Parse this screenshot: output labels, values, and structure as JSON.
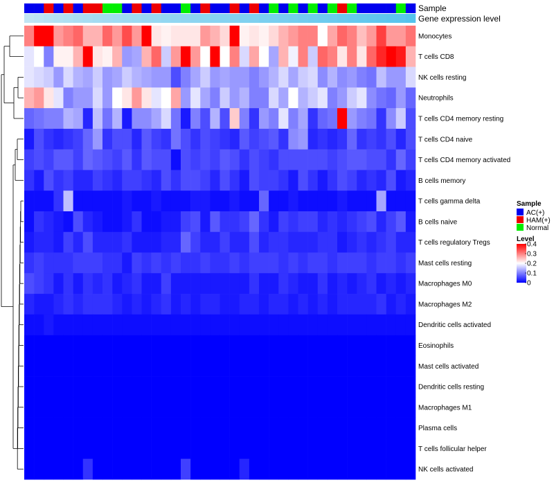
{
  "chart_data": {
    "type": "heatmap",
    "title": "",
    "annotation_labels": [
      "Sample",
      "Gene expression level"
    ],
    "rows": [
      "Monocytes",
      "T cells CD8",
      "NK cells resting",
      "Neutrophils",
      "T cells CD4 memory resting",
      "T cells CD4 naive",
      "T cells CD4 memory activated",
      "B cells memory",
      "T cells gamma delta",
      "B cells naive",
      "T cells regulatory  Tregs",
      "Mast cells resting",
      "Macrophages M0",
      "Macrophages M2",
      "Dendritic cells activated",
      "Eosinophils",
      "Mast cells activated",
      "Dendritic cells resting",
      "Macrophages M1",
      "Plasma cells",
      "T cells follicular helper",
      "NK cells activated"
    ],
    "sample_groups": [
      "A",
      "A",
      "H",
      "A",
      "H",
      "A",
      "H",
      "H",
      "N",
      "N",
      "A",
      "H",
      "A",
      "H",
      "A",
      "A",
      "N",
      "A",
      "H",
      "A",
      "A",
      "H",
      "A",
      "H",
      "A",
      "N",
      "A",
      "N",
      "A",
      "N",
      "A",
      "N",
      "H",
      "N",
      "A",
      "A",
      "A",
      "A",
      "N",
      "A"
    ],
    "expression_annotation": [
      0.1,
      0.14,
      0.18,
      0.22,
      0.25,
      0.28,
      0.31,
      0.34,
      0.36,
      0.38,
      0.4,
      0.42,
      0.44,
      0.46,
      0.48,
      0.5,
      0.52,
      0.54,
      0.56,
      0.58,
      0.6,
      0.62,
      0.64,
      0.66,
      0.68,
      0.7,
      0.72,
      0.74,
      0.76,
      0.78,
      0.8,
      0.82,
      0.84,
      0.86,
      0.88,
      0.9,
      0.92,
      0.94,
      0.96,
      1.0
    ],
    "values": [
      [
        0.3,
        0.4,
        0.4,
        0.28,
        0.3,
        0.32,
        0.26,
        0.26,
        0.32,
        0.28,
        0.34,
        0.28,
        0.4,
        0.22,
        0.21,
        0.22,
        0.22,
        0.22,
        0.28,
        0.26,
        0.23,
        0.4,
        0.21,
        0.22,
        0.21,
        0.23,
        0.26,
        0.28,
        0.3,
        0.3,
        0.2,
        0.27,
        0.32,
        0.3,
        0.25,
        0.28,
        0.35,
        0.28,
        0.28,
        0.31
      ],
      [
        0.18,
        0.2,
        0.1,
        0.21,
        0.21,
        0.26,
        0.4,
        0.22,
        0.21,
        0.26,
        0.12,
        0.13,
        0.26,
        0.32,
        0.16,
        0.28,
        0.4,
        0.28,
        0.2,
        0.42,
        0.2,
        0.3,
        0.17,
        0.27,
        0.2,
        0.13,
        0.26,
        0.19,
        0.3,
        0.16,
        0.32,
        0.3,
        0.22,
        0.3,
        0.22,
        0.32,
        0.37,
        0.42,
        0.38,
        0.26
      ],
      [
        0.18,
        0.17,
        0.16,
        0.12,
        0.17,
        0.14,
        0.13,
        0.16,
        0.12,
        0.13,
        0.16,
        0.14,
        0.13,
        0.12,
        0.12,
        0.06,
        0.1,
        0.13,
        0.16,
        0.12,
        0.13,
        0.12,
        0.12,
        0.1,
        0.12,
        0.14,
        0.17,
        0.13,
        0.16,
        0.17,
        0.11,
        0.14,
        0.11,
        0.12,
        0.1,
        0.09,
        0.15,
        0.12,
        0.12,
        0.17
      ],
      [
        0.26,
        0.28,
        0.22,
        0.18,
        0.1,
        0.12,
        0.12,
        0.17,
        0.12,
        0.2,
        0.22,
        0.28,
        0.22,
        0.18,
        0.2,
        0.27,
        0.12,
        0.18,
        0.13,
        0.1,
        0.16,
        0.12,
        0.14,
        0.1,
        0.1,
        0.17,
        0.13,
        0.2,
        0.14,
        0.16,
        0.18,
        0.1,
        0.12,
        0.16,
        0.18,
        0.11,
        0.09,
        0.08,
        0.12,
        0.08
      ],
      [
        0.08,
        0.09,
        0.1,
        0.1,
        0.14,
        0.13,
        0.03,
        0.15,
        0.09,
        0.14,
        0.02,
        0.11,
        0.11,
        0.13,
        0.17,
        0.09,
        0.02,
        0.1,
        0.06,
        0.14,
        0.06,
        0.24,
        0.1,
        0.04,
        0.12,
        0.1,
        0.18,
        0.1,
        0.13,
        0.04,
        0.08,
        0.09,
        0.42,
        0.12,
        0.1,
        0.09,
        0.04,
        0.11,
        0.16,
        0.06
      ],
      [
        0.02,
        0.06,
        0.04,
        0.03,
        0.04,
        0.05,
        0.08,
        0.12,
        0.04,
        0.06,
        0.06,
        0.03,
        0.07,
        0.05,
        0.04,
        0.09,
        0.06,
        0.04,
        0.06,
        0.05,
        0.04,
        0.03,
        0.07,
        0.05,
        0.06,
        0.07,
        0.04,
        0.11,
        0.12,
        0.03,
        0.04,
        0.03,
        0.04,
        0.08,
        0.04,
        0.05,
        0.04,
        0.06,
        0.03,
        0.06
      ],
      [
        0.05,
        0.06,
        0.05,
        0.07,
        0.07,
        0.05,
        0.08,
        0.07,
        0.06,
        0.05,
        0.07,
        0.04,
        0.07,
        0.06,
        0.06,
        0.01,
        0.06,
        0.05,
        0.06,
        0.05,
        0.07,
        0.06,
        0.04,
        0.06,
        0.05,
        0.04,
        0.06,
        0.06,
        0.06,
        0.06,
        0.06,
        0.05,
        0.06,
        0.07,
        0.07,
        0.06,
        0.06,
        0.04,
        0.08,
        0.05
      ],
      [
        0.04,
        0.02,
        0.06,
        0.04,
        0.05,
        0.03,
        0.03,
        0.05,
        0.04,
        0.03,
        0.05,
        0.05,
        0.04,
        0.03,
        0.06,
        0.04,
        0.06,
        0.06,
        0.05,
        0.03,
        0.06,
        0.04,
        0.02,
        0.06,
        0.05,
        0.05,
        0.04,
        0.02,
        0.06,
        0.04,
        0.02,
        0.04,
        0.06,
        0.05,
        0.03,
        0.04,
        0.03,
        0.06,
        0.02,
        0.03
      ],
      [
        0.01,
        0.01,
        0.01,
        0.04,
        0.15,
        0.01,
        0.01,
        0.01,
        0.01,
        0.01,
        0.02,
        0.01,
        0.01,
        0.02,
        0.01,
        0.01,
        0.01,
        0.02,
        0.02,
        0.01,
        0.01,
        0.02,
        0.01,
        0.01,
        0.08,
        0.01,
        0.01,
        0.02,
        0.01,
        0.01,
        0.01,
        0.01,
        0.02,
        0.01,
        0.01,
        0.01,
        0.13,
        0.01,
        0.01,
        0.01
      ],
      [
        0.01,
        0.04,
        0.03,
        0.02,
        0.01,
        0.06,
        0.03,
        0.02,
        0.01,
        0.01,
        0.02,
        0.04,
        0.01,
        0.01,
        0.02,
        0.02,
        0.05,
        0.06,
        0.02,
        0.07,
        0.04,
        0.04,
        0.05,
        0.08,
        0.04,
        0.02,
        0.05,
        0.04,
        0.05,
        0.05,
        0.03,
        0.04,
        0.03,
        0.04,
        0.05,
        0.06,
        0.03,
        0.05,
        0.07,
        0.02
      ],
      [
        0.02,
        0.03,
        0.03,
        0.02,
        0.05,
        0.03,
        0.06,
        0.03,
        0.03,
        0.03,
        0.04,
        0.02,
        0.02,
        0.02,
        0.03,
        0.03,
        0.08,
        0.05,
        0.03,
        0.03,
        0.05,
        0.03,
        0.03,
        0.06,
        0.03,
        0.04,
        0.04,
        0.03,
        0.03,
        0.03,
        0.04,
        0.04,
        0.02,
        0.03,
        0.04,
        0.03,
        0.04,
        0.05,
        0.03,
        0.03
      ],
      [
        0.04,
        0.05,
        0.04,
        0.04,
        0.04,
        0.05,
        0.05,
        0.05,
        0.04,
        0.04,
        0.02,
        0.05,
        0.04,
        0.05,
        0.04,
        0.05,
        0.04,
        0.04,
        0.05,
        0.04,
        0.04,
        0.05,
        0.04,
        0.05,
        0.05,
        0.05,
        0.04,
        0.05,
        0.04,
        0.05,
        0.05,
        0.04,
        0.05,
        0.05,
        0.05,
        0.04,
        0.05,
        0.05,
        0.04,
        0.05
      ],
      [
        0.06,
        0.05,
        0.04,
        0.02,
        0.04,
        0.02,
        0.04,
        0.03,
        0.04,
        0.02,
        0.03,
        0.04,
        0.02,
        0.02,
        0.05,
        0.02,
        0.02,
        0.02,
        0.02,
        0.02,
        0.02,
        0.02,
        0.02,
        0.04,
        0.02,
        0.02,
        0.04,
        0.03,
        0.02,
        0.02,
        0.04,
        0.02,
        0.03,
        0.02,
        0.03,
        0.04,
        0.02,
        0.03,
        0.02,
        0.03
      ],
      [
        0.03,
        0.02,
        0.02,
        0.03,
        0.04,
        0.03,
        0.04,
        0.04,
        0.04,
        0.03,
        0.02,
        0.03,
        0.02,
        0.03,
        0.04,
        0.02,
        0.03,
        0.02,
        0.03,
        0.03,
        0.02,
        0.02,
        0.03,
        0.03,
        0.02,
        0.03,
        0.03,
        0.02,
        0.03,
        0.02,
        0.03,
        0.02,
        0.03,
        0.03,
        0.03,
        0.03,
        0.04,
        0.02,
        0.03,
        0.02
      ],
      [
        0.01,
        0.01,
        0.02,
        0.01,
        0.01,
        0.01,
        0.01,
        0.01,
        0.01,
        0.01,
        0.01,
        0.01,
        0.01,
        0.01,
        0.01,
        0.01,
        0.01,
        0.01,
        0.01,
        0.01,
        0.01,
        0.01,
        0.01,
        0.01,
        0.01,
        0.01,
        0.01,
        0.01,
        0.01,
        0.01,
        0.01,
        0.01,
        0.01,
        0.01,
        0.01,
        0.01,
        0.01,
        0.01,
        0.01,
        0.01
      ],
      [
        0.0,
        0.0,
        0.0,
        0.0,
        0.0,
        0.0,
        0.0,
        0.0,
        0.0,
        0.0,
        0.0,
        0.0,
        0.0,
        0.0,
        0.0,
        0.0,
        0.0,
        0.0,
        0.0,
        0.0,
        0.0,
        0.0,
        0.0,
        0.0,
        0.0,
        0.0,
        0.0,
        0.0,
        0.0,
        0.0,
        0.0,
        0.0,
        0.0,
        0.0,
        0.0,
        0.0,
        0.0,
        0.0,
        0.0,
        0.0
      ],
      [
        0.0,
        0.0,
        0.0,
        0.0,
        0.0,
        0.0,
        0.0,
        0.0,
        0.0,
        0.0,
        0.0,
        0.0,
        0.0,
        0.0,
        0.0,
        0.0,
        0.0,
        0.0,
        0.0,
        0.0,
        0.0,
        0.0,
        0.0,
        0.0,
        0.0,
        0.0,
        0.0,
        0.0,
        0.0,
        0.0,
        0.0,
        0.0,
        0.0,
        0.0,
        0.0,
        0.0,
        0.0,
        0.0,
        0.0,
        0.0
      ],
      [
        0.0,
        0.0,
        0.0,
        0.0,
        0.0,
        0.0,
        0.0,
        0.0,
        0.0,
        0.0,
        0.0,
        0.0,
        0.0,
        0.0,
        0.0,
        0.0,
        0.0,
        0.0,
        0.0,
        0.0,
        0.0,
        0.0,
        0.0,
        0.0,
        0.0,
        0.0,
        0.0,
        0.0,
        0.0,
        0.0,
        0.0,
        0.0,
        0.0,
        0.0,
        0.0,
        0.0,
        0.0,
        0.0,
        0.0,
        0.0
      ],
      [
        0.0,
        0.0,
        0.0,
        0.0,
        0.0,
        0.0,
        0.0,
        0.0,
        0.0,
        0.0,
        0.0,
        0.0,
        0.0,
        0.0,
        0.0,
        0.0,
        0.0,
        0.0,
        0.0,
        0.0,
        0.0,
        0.0,
        0.0,
        0.0,
        0.0,
        0.0,
        0.0,
        0.0,
        0.0,
        0.0,
        0.0,
        0.0,
        0.0,
        0.0,
        0.0,
        0.0,
        0.0,
        0.0,
        0.0,
        0.0
      ],
      [
        0.0,
        0.0,
        0.0,
        0.0,
        0.0,
        0.0,
        0.0,
        0.0,
        0.0,
        0.0,
        0.0,
        0.0,
        0.0,
        0.0,
        0.0,
        0.0,
        0.0,
        0.0,
        0.0,
        0.0,
        0.0,
        0.0,
        0.0,
        0.0,
        0.0,
        0.0,
        0.0,
        0.0,
        0.0,
        0.0,
        0.0,
        0.0,
        0.0,
        0.0,
        0.0,
        0.0,
        0.0,
        0.0,
        0.0,
        0.0
      ],
      [
        0.0,
        0.0,
        0.0,
        0.0,
        0.0,
        0.0,
        0.0,
        0.0,
        0.0,
        0.0,
        0.0,
        0.0,
        0.0,
        0.0,
        0.0,
        0.0,
        0.0,
        0.0,
        0.0,
        0.0,
        0.0,
        0.0,
        0.0,
        0.0,
        0.0,
        0.0,
        0.0,
        0.0,
        0.0,
        0.0,
        0.0,
        0.0,
        0.0,
        0.0,
        0.0,
        0.0,
        0.0,
        0.0,
        0.0,
        0.0
      ],
      [
        0.0,
        0.0,
        0.0,
        0.0,
        0.0,
        0.0,
        0.04,
        0.0,
        0.0,
        0.0,
        0.0,
        0.0,
        0.0,
        0.0,
        0.0,
        0.0,
        0.05,
        0.0,
        0.0,
        0.0,
        0.0,
        0.0,
        0.03,
        0.0,
        0.0,
        0.0,
        0.0,
        0.0,
        0.0,
        0.0,
        0.0,
        0.0,
        0.0,
        0.0,
        0.0,
        0.0,
        0.0,
        0.0,
        0.0,
        0.0
      ]
    ],
    "color_scale": {
      "min": 0,
      "max": 0.4,
      "low": "#0000ff",
      "mid": "#ffffff",
      "high": "#ff0000",
      "midpoint": 0.2
    },
    "annotation_scale": {
      "low": "#cde9f5",
      "high": "#55c3ec"
    },
    "legend": {
      "position": "right",
      "sample_title": "Sample",
      "sample_items": [
        {
          "key": "A",
          "label": "AC(+)",
          "color": "#0000ee"
        },
        {
          "key": "H",
          "label": "HAM(+)",
          "color": "#ee0000"
        },
        {
          "key": "N",
          "label": "Normal",
          "color": "#00ee00"
        }
      ],
      "level_title": "Level",
      "level_ticks": [
        0.4,
        0.3,
        0.2,
        0.1,
        0
      ],
      "level_tick_labels": [
        "0.4",
        "0.3",
        "0.2",
        "0.1",
        "0"
      ]
    },
    "row_dendrogram": "left",
    "grid": false
  }
}
